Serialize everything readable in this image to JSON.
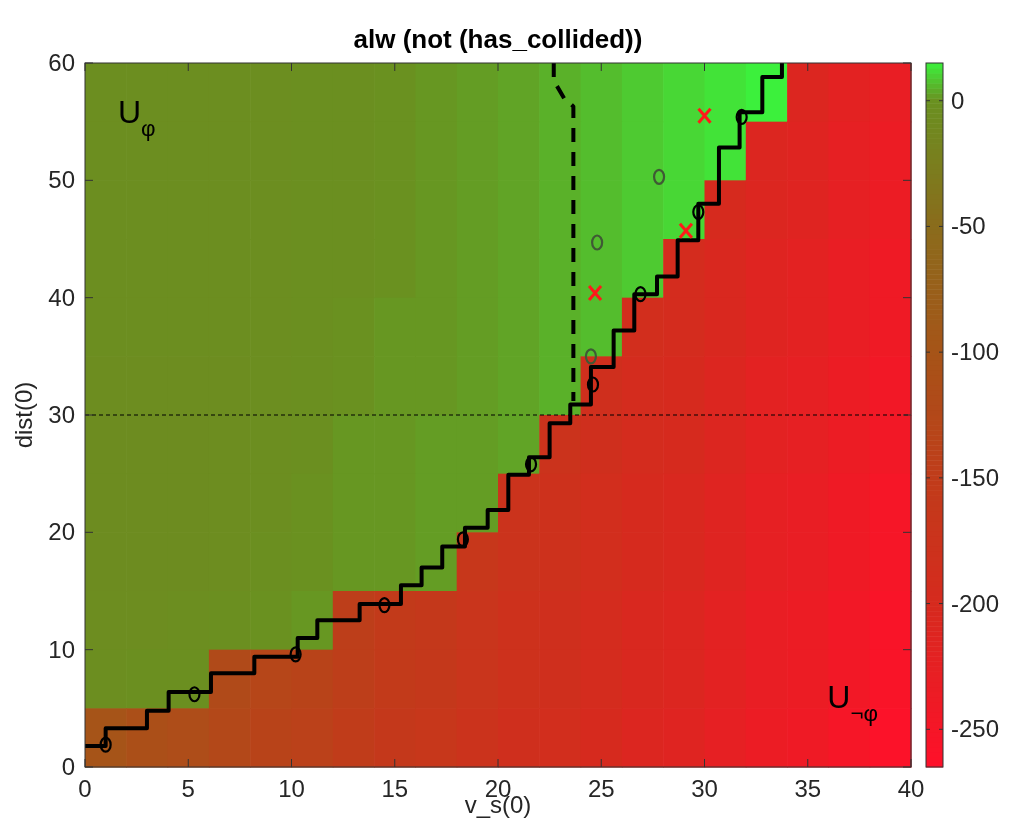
{
  "chart_data": {
    "type": "heatmap",
    "title": "alw (not (has_collided))",
    "xlabel": "v_s(0)",
    "ylabel": "dist(0)",
    "xlim": [
      0,
      40
    ],
    "ylim": [
      0,
      60
    ],
    "xticks": [
      0,
      5,
      10,
      15,
      20,
      25,
      30,
      35,
      40
    ],
    "yticks": [
      0,
      10,
      20,
      30,
      40,
      50,
      60
    ],
    "clim": [
      -265,
      15
    ],
    "cticks": [
      -250,
      -200,
      -150,
      -100,
      -50,
      0
    ],
    "cells": [
      [
        -3,
        -3,
        -3,
        -3,
        -3,
        -1,
        -1,
        0,
        1,
        2,
        3,
        5,
        7,
        9,
        11,
        13,
        15,
        -210,
        -220,
        -230
      ],
      [
        -3,
        -3,
        -3,
        -3,
        -3,
        -1,
        -1,
        0,
        1,
        2,
        3,
        5,
        7,
        9,
        11,
        13,
        -210,
        -215,
        -225,
        -235
      ],
      [
        -3,
        -3,
        -3,
        -3,
        -3,
        -1,
        -1,
        0,
        1,
        2,
        3,
        5,
        7,
        9,
        11,
        -200,
        -210,
        -215,
        -225,
        -235
      ],
      [
        -3,
        -3,
        -3,
        -3,
        -3,
        -1,
        -1,
        0,
        1,
        2,
        3,
        5,
        7,
        9,
        -195,
        -205,
        -215,
        -220,
        -230,
        -240
      ],
      [
        -3,
        -3,
        -3,
        -3,
        -3,
        -1,
        0,
        1,
        1,
        2,
        3,
        5,
        7,
        -190,
        -195,
        -205,
        -215,
        -220,
        -230,
        -240
      ],
      [
        -4,
        -4,
        -4,
        -4,
        -3,
        -1,
        0,
        1,
        1,
        2,
        3,
        5,
        -185,
        -195,
        -200,
        -210,
        -220,
        -225,
        -235,
        -245
      ],
      [
        -5,
        -5,
        -5,
        -4,
        -3,
        -1,
        1,
        1,
        2,
        2,
        3,
        -175,
        -185,
        -195,
        -200,
        -210,
        -220,
        -225,
        -235,
        -245
      ],
      [
        -5,
        -5,
        -5,
        -4,
        -3,
        0,
        1,
        1,
        2,
        2,
        -175,
        -180,
        -190,
        -200,
        -205,
        -215,
        -225,
        -230,
        -240,
        -250
      ],
      [
        -5,
        -5,
        -5,
        -4,
        -2,
        0,
        1,
        1,
        2,
        -165,
        -175,
        -180,
        -190,
        -200,
        -205,
        -215,
        -225,
        -230,
        -240,
        -250
      ],
      [
        -4,
        -4,
        -3,
        -1,
        0,
        1,
        -145,
        -155,
        -160,
        -170,
        -180,
        -185,
        -195,
        -205,
        -210,
        -220,
        -230,
        -235,
        -245,
        -255
      ],
      [
        -3,
        -2,
        -1,
        -120,
        -130,
        -135,
        -145,
        -155,
        -160,
        -170,
        -180,
        -185,
        -195,
        -205,
        -210,
        -220,
        -230,
        -235,
        -245,
        -255
      ],
      [
        -100,
        -110,
        -115,
        -125,
        -135,
        -140,
        -150,
        -160,
        -165,
        -175,
        -185,
        -190,
        -200,
        -210,
        -215,
        -225,
        -235,
        -240,
        -250,
        -260
      ]
    ],
    "series": [
      {
        "type": "step",
        "color": "#000000",
        "line_style": "solid",
        "x": [
          0,
          1.0,
          3.0,
          4.05,
          6.1,
          8.2,
          10.3,
          11.25,
          13.3,
          15.3,
          16.3,
          17.3,
          18.4,
          19.5,
          20.5,
          21.5,
          22.5,
          23.5,
          24.5,
          25.6,
          26.6,
          27.7,
          28.7,
          29.7,
          30.7,
          31.7,
          32.8,
          33.75
        ],
        "values": [
          1.8,
          3.3,
          4.8,
          6.4,
          8.0,
          9.4,
          11.0,
          12.5,
          13.9,
          15.5,
          17.0,
          18.8,
          20.4,
          21.9,
          24.9,
          26.4,
          29.3,
          30.9,
          34.1,
          37.2,
          40.3,
          41.8,
          44.9,
          48.0,
          52.8,
          55.8,
          58.8,
          60
        ]
      },
      {
        "type": "line",
        "color": "#000000",
        "line_style": "dashed",
        "x": [
          22.7,
          22.7,
          23.2,
          23.65,
          23.65
        ],
        "values": [
          60,
          58.5,
          57.0,
          56.3,
          31.2
        ]
      },
      {
        "type": "scatter",
        "color": "#000000",
        "marker": "circle",
        "x": [
          1.0,
          5.3,
          10.2,
          14.5,
          18.3,
          21.6,
          24.6,
          26.9,
          29.7,
          31.8
        ],
        "values": [
          1.9,
          6.2,
          9.6,
          13.8,
          19.4,
          25.8,
          32.6,
          40.3,
          47.3,
          55.4
        ]
      },
      {
        "type": "scatter",
        "color": "#3f5a35",
        "marker": "circle",
        "x": [
          24.5,
          24.8,
          27.8
        ],
        "values": [
          35.0,
          44.7,
          50.3
        ]
      },
      {
        "type": "scatter",
        "color": "#ff1a1a",
        "marker": "cross",
        "x": [
          24.7,
          29.1,
          30.0
        ],
        "values": [
          40.4,
          45.7,
          55.5
        ]
      }
    ],
    "ref_lines": [
      {
        "axis": "y",
        "value": 30,
        "color": "#000000",
        "line_style": "dashed"
      }
    ],
    "annotations": [
      "U$_{φ}$",
      "U$_{¬φ}$"
    ]
  }
}
